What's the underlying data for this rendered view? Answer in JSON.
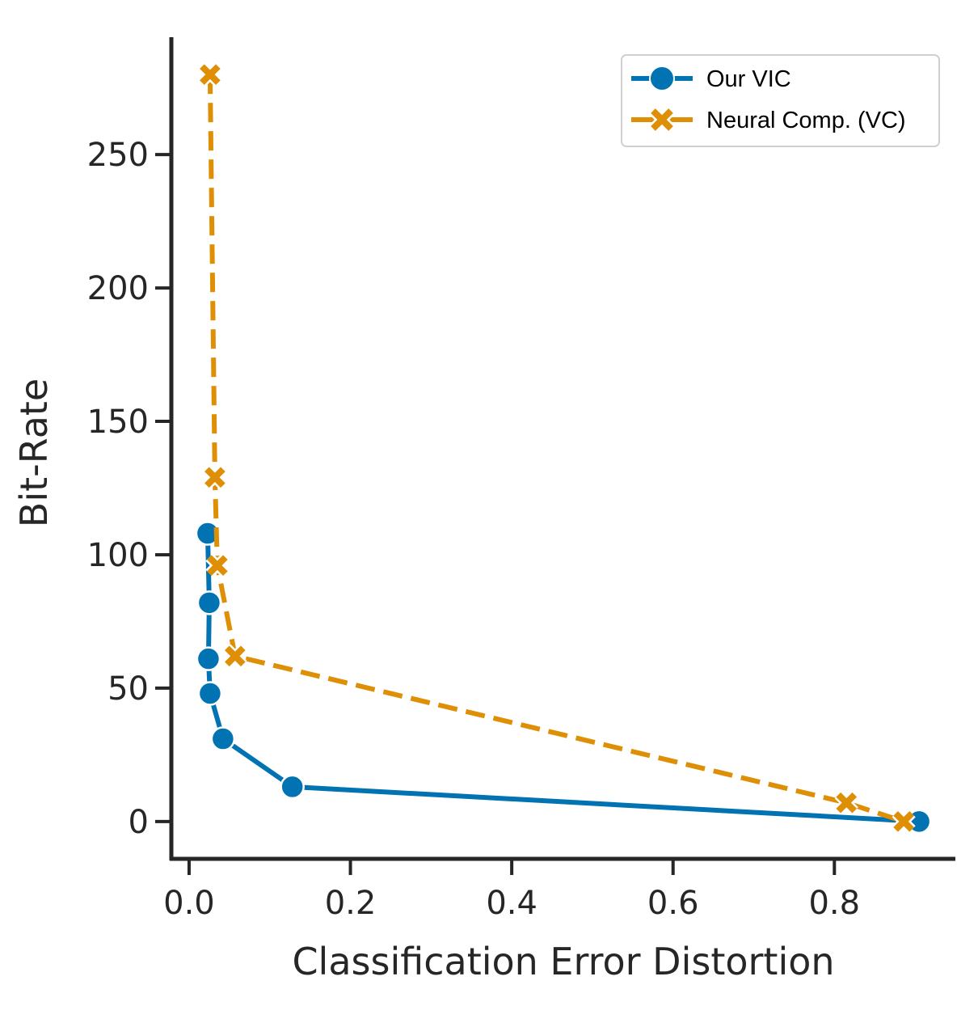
{
  "chart_data": {
    "type": "line",
    "title": "",
    "xlabel": "Classification Error Distortion",
    "ylabel": "Bit-Rate",
    "xlim": [
      -0.022,
      0.95
    ],
    "ylim": [
      -14,
      294
    ],
    "xticks": [
      0.0,
      0.2,
      0.4,
      0.6,
      0.8
    ],
    "xtick_labels": [
      "0.0",
      "0.2",
      "0.4",
      "0.6",
      "0.8"
    ],
    "yticks": [
      0,
      50,
      100,
      150,
      200,
      250
    ],
    "ytick_labels": [
      "0",
      "50",
      "100",
      "150",
      "200",
      "250"
    ],
    "grid": false,
    "legend_position": "top-right",
    "series": [
      {
        "name": "Our VIC",
        "color": "#0173b2",
        "line_style": "solid",
        "marker": "circle",
        "x": [
          0.023,
          0.025,
          0.024,
          0.026,
          0.042,
          0.128,
          0.905
        ],
        "y": [
          108,
          82,
          61,
          48,
          31,
          13,
          0
        ]
      },
      {
        "name": "Neural Comp. (VC)",
        "color": "#de8f05",
        "line_style": "dashed",
        "marker": "x",
        "x": [
          0.026,
          0.032,
          0.035,
          0.057,
          0.815,
          0.886
        ],
        "y": [
          280,
          129,
          96,
          62,
          7,
          0
        ]
      }
    ]
  }
}
